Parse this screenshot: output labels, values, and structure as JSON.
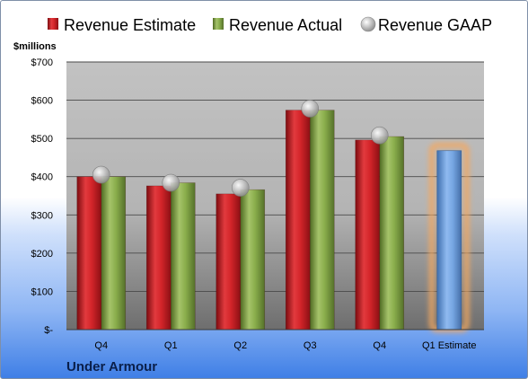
{
  "chart_data": {
    "type": "bar",
    "title": "",
    "company": "Under Armour",
    "unit_label": "$millions",
    "categories": [
      "Q4",
      "Q1",
      "Q2",
      "Q3",
      "Q4",
      "Q1 Estimate"
    ],
    "series": [
      {
        "name": "Revenue Estimate",
        "kind": "bar",
        "color": "#cc1f24",
        "values": [
          400,
          376,
          355,
          574,
          496,
          null
        ]
      },
      {
        "name": "Revenue Actual",
        "kind": "bar",
        "color": "#7fa043",
        "values": [
          400,
          384,
          366,
          574,
          505,
          null
        ]
      },
      {
        "name": "Revenue GAAP",
        "kind": "marker",
        "color": "#b9b9b9",
        "values": [
          405,
          384,
          371,
          578,
          508,
          null
        ]
      }
    ],
    "estimate_bar": {
      "category": "Q1 Estimate",
      "value": 468,
      "color": "#6f9fd9",
      "glow": "#f4a860"
    },
    "ylim": [
      0,
      700
    ],
    "yticks": [
      0,
      100,
      200,
      300,
      400,
      500,
      600,
      700
    ],
    "ytick_labels": [
      "$-",
      "$100",
      "$200",
      "$300",
      "$400",
      "$500",
      "$600",
      "$700"
    ],
    "legend_position": "top",
    "grid": true
  }
}
